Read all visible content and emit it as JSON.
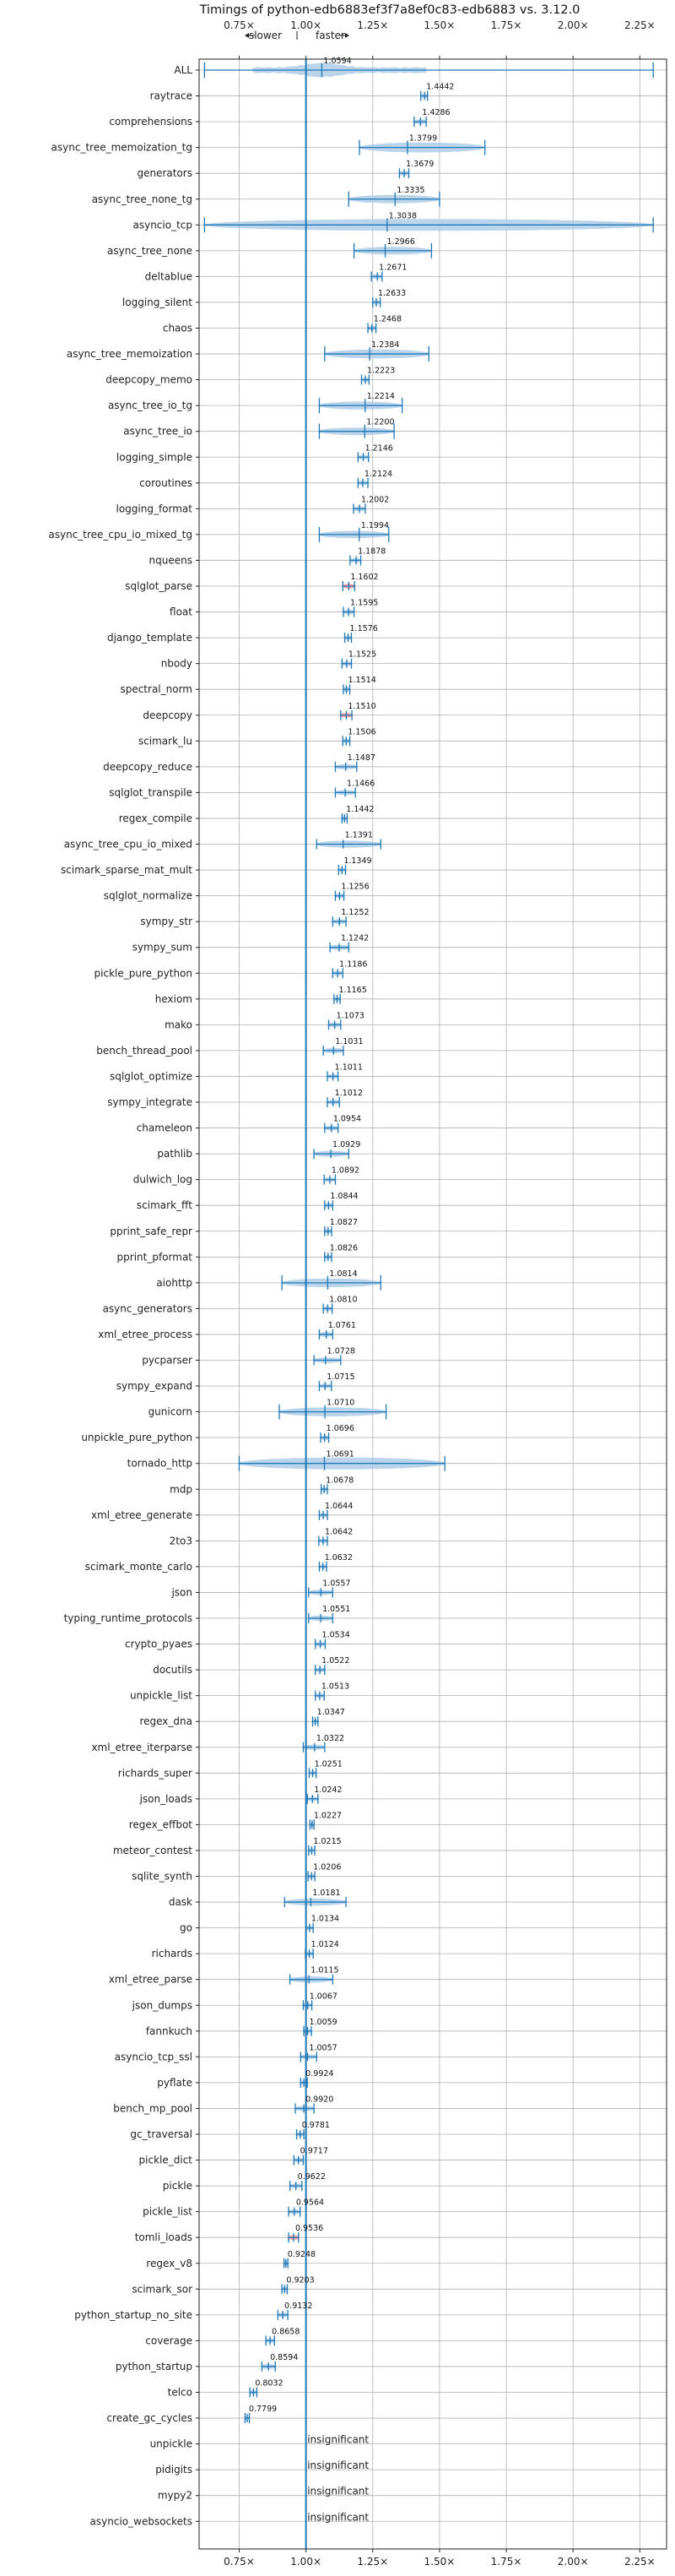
{
  "chart_data": {
    "type": "violin",
    "title": "Timings of python-edb6883ef3f7a8ef0c83-edb6883 vs. 3.12.0",
    "direction_labels": {
      "slower": "slower",
      "faster": "faster"
    },
    "xlim": [
      0.6,
      2.35
    ],
    "x_ticks": [
      {
        "value": 0.75,
        "label": "0.75×"
      },
      {
        "value": 1.0,
        "label": "1.00×"
      },
      {
        "value": 1.25,
        "label": "1.25×"
      },
      {
        "value": 1.5,
        "label": "1.50×"
      },
      {
        "value": 1.75,
        "label": "1.75×"
      },
      {
        "value": 2.0,
        "label": "2.00×"
      },
      {
        "value": 2.25,
        "label": "2.25×"
      }
    ],
    "reference_line": 1.0,
    "grid": true,
    "insignificant_label": "insignificant",
    "accent_color": "#1f77b4",
    "fill_color": "#aecde8",
    "highlight_color": "#ff9999",
    "benchmarks": [
      {
        "name": "ALL",
        "value": 1.0594,
        "label": "1.0594",
        "min": 0.62,
        "max": 2.3,
        "kind": "all"
      },
      {
        "name": "raytrace",
        "value": 1.4442,
        "label": "1.4442",
        "min": 1.43,
        "max": 1.455
      },
      {
        "name": "comprehensions",
        "value": 1.4286,
        "label": "1.4286",
        "min": 1.405,
        "max": 1.45
      },
      {
        "name": "async_tree_memoization_tg",
        "value": 1.3799,
        "label": "1.3799",
        "min": 1.2,
        "max": 1.67
      },
      {
        "name": "generators",
        "value": 1.3679,
        "label": "1.3679",
        "min": 1.35,
        "max": 1.385
      },
      {
        "name": "async_tree_none_tg",
        "value": 1.3335,
        "label": "1.3335",
        "min": 1.16,
        "max": 1.5
      },
      {
        "name": "asyncio_tcp",
        "value": 1.3038,
        "label": "1.3038",
        "min": 0.62,
        "max": 2.3
      },
      {
        "name": "async_tree_none",
        "value": 1.2966,
        "label": "1.2966",
        "min": 1.18,
        "max": 1.47
      },
      {
        "name": "deltablue",
        "value": 1.2671,
        "label": "1.2671",
        "min": 1.245,
        "max": 1.285
      },
      {
        "name": "logging_silent",
        "value": 1.2633,
        "label": "1.2633",
        "min": 1.25,
        "max": 1.278
      },
      {
        "name": "chaos",
        "value": 1.2468,
        "label": "1.2468",
        "min": 1.232,
        "max": 1.262
      },
      {
        "name": "async_tree_memoization",
        "value": 1.2384,
        "label": "1.2384",
        "min": 1.07,
        "max": 1.46
      },
      {
        "name": "deepcopy_memo",
        "value": 1.2223,
        "label": "1.2223",
        "min": 1.208,
        "max": 1.236
      },
      {
        "name": "async_tree_io_tg",
        "value": 1.2214,
        "label": "1.2214",
        "min": 1.05,
        "max": 1.36
      },
      {
        "name": "async_tree_io",
        "value": 1.22,
        "label": "1.2200",
        "min": 1.05,
        "max": 1.33
      },
      {
        "name": "logging_simple",
        "value": 1.2146,
        "label": "1.2146",
        "min": 1.195,
        "max": 1.234
      },
      {
        "name": "coroutines",
        "value": 1.2124,
        "label": "1.2124",
        "min": 1.195,
        "max": 1.232
      },
      {
        "name": "logging_format",
        "value": 1.2002,
        "label": "1.2002",
        "min": 1.178,
        "max": 1.222
      },
      {
        "name": "async_tree_cpu_io_mixed_tg",
        "value": 1.1994,
        "label": "1.1994",
        "min": 1.05,
        "max": 1.31
      },
      {
        "name": "nqueens",
        "value": 1.1878,
        "label": "1.1878",
        "min": 1.165,
        "max": 1.205
      },
      {
        "name": "sqlglot_parse",
        "value": 1.1602,
        "label": "1.1602",
        "min": 1.138,
        "max": 1.182,
        "highlight": true
      },
      {
        "name": "float",
        "value": 1.1595,
        "label": "1.1595",
        "min": 1.14,
        "max": 1.18
      },
      {
        "name": "django_template",
        "value": 1.1576,
        "label": "1.1576",
        "min": 1.145,
        "max": 1.17
      },
      {
        "name": "nbody",
        "value": 1.1525,
        "label": "1.1525",
        "min": 1.135,
        "max": 1.17
      },
      {
        "name": "spectral_norm",
        "value": 1.1514,
        "label": "1.1514",
        "min": 1.14,
        "max": 1.164
      },
      {
        "name": "deepcopy",
        "value": 1.151,
        "label": "1.1510",
        "min": 1.13,
        "max": 1.172,
        "highlight": true
      },
      {
        "name": "scimark_lu",
        "value": 1.1506,
        "label": "1.1506",
        "min": 1.138,
        "max": 1.164
      },
      {
        "name": "deepcopy_reduce",
        "value": 1.1487,
        "label": "1.1487",
        "min": 1.11,
        "max": 1.19
      },
      {
        "name": "sqlglot_transpile",
        "value": 1.1466,
        "label": "1.1466",
        "min": 1.11,
        "max": 1.185
      },
      {
        "name": "regex_compile",
        "value": 1.1442,
        "label": "1.1442",
        "min": 1.135,
        "max": 1.154
      },
      {
        "name": "async_tree_cpu_io_mixed",
        "value": 1.1391,
        "label": "1.1391",
        "min": 1.04,
        "max": 1.28
      },
      {
        "name": "scimark_sparse_mat_mult",
        "value": 1.1349,
        "label": "1.1349",
        "min": 1.122,
        "max": 1.148
      },
      {
        "name": "sqlglot_normalize",
        "value": 1.1256,
        "label": "1.1256",
        "min": 1.11,
        "max": 1.142
      },
      {
        "name": "sympy_str",
        "value": 1.1252,
        "label": "1.1252",
        "min": 1.1,
        "max": 1.15
      },
      {
        "name": "sympy_sum",
        "value": 1.1242,
        "label": "1.1242",
        "min": 1.09,
        "max": 1.16
      },
      {
        "name": "pickle_pure_python",
        "value": 1.1186,
        "label": "1.1186",
        "min": 1.1,
        "max": 1.138
      },
      {
        "name": "hexiom",
        "value": 1.1165,
        "label": "1.1165",
        "min": 1.105,
        "max": 1.128
      },
      {
        "name": "mako",
        "value": 1.1073,
        "label": "1.1073",
        "min": 1.085,
        "max": 1.13
      },
      {
        "name": "bench_thread_pool",
        "value": 1.1031,
        "label": "1.1031",
        "min": 1.065,
        "max": 1.14
      },
      {
        "name": "sqlglot_optimize",
        "value": 1.1011,
        "label": "1.1011",
        "min": 1.08,
        "max": 1.12
      },
      {
        "name": "sympy_integrate",
        "value": 1.1012,
        "label": "1.1012",
        "min": 1.08,
        "max": 1.125
      },
      {
        "name": "chameleon",
        "value": 1.0954,
        "label": "1.0954",
        "min": 1.07,
        "max": 1.12
      },
      {
        "name": "pathlib",
        "value": 1.0929,
        "label": "1.0929",
        "min": 1.03,
        "max": 1.16
      },
      {
        "name": "dulwich_log",
        "value": 1.0892,
        "label": "1.0892",
        "min": 1.068,
        "max": 1.11
      },
      {
        "name": "scimark_fft",
        "value": 1.0844,
        "label": "1.0844",
        "min": 1.07,
        "max": 1.1
      },
      {
        "name": "pprint_safe_repr",
        "value": 1.0827,
        "label": "1.0827",
        "min": 1.07,
        "max": 1.096
      },
      {
        "name": "pprint_pformat",
        "value": 1.0826,
        "label": "1.0826",
        "min": 1.07,
        "max": 1.096
      },
      {
        "name": "aiohttp",
        "value": 1.0814,
        "label": "1.0814",
        "min": 0.91,
        "max": 1.28
      },
      {
        "name": "async_generators",
        "value": 1.081,
        "label": "1.0810",
        "min": 1.065,
        "max": 1.098
      },
      {
        "name": "xml_etree_process",
        "value": 1.0761,
        "label": "1.0761",
        "min": 1.05,
        "max": 1.1
      },
      {
        "name": "pycparser",
        "value": 1.0728,
        "label": "1.0728",
        "min": 1.03,
        "max": 1.13
      },
      {
        "name": "sympy_expand",
        "value": 1.0715,
        "label": "1.0715",
        "min": 1.05,
        "max": 1.095
      },
      {
        "name": "gunicorn",
        "value": 1.071,
        "label": "1.0710",
        "min": 0.9,
        "max": 1.3
      },
      {
        "name": "unpickle_pure_python",
        "value": 1.0696,
        "label": "1.0696",
        "min": 1.055,
        "max": 1.085
      },
      {
        "name": "tornado_http",
        "value": 1.0691,
        "label": "1.0691",
        "min": 0.75,
        "max": 1.52
      },
      {
        "name": "mdp",
        "value": 1.0678,
        "label": "1.0678",
        "min": 1.057,
        "max": 1.08
      },
      {
        "name": "xml_etree_generate",
        "value": 1.0644,
        "label": "1.0644",
        "min": 1.05,
        "max": 1.08
      },
      {
        "name": "2to3",
        "value": 1.0642,
        "label": "1.0642",
        "min": 1.048,
        "max": 1.08
      },
      {
        "name": "scimark_monte_carlo",
        "value": 1.0632,
        "label": "1.0632",
        "min": 1.05,
        "max": 1.077
      },
      {
        "name": "json",
        "value": 1.0557,
        "label": "1.0557",
        "min": 1.01,
        "max": 1.1
      },
      {
        "name": "typing_runtime_protocols",
        "value": 1.0551,
        "label": "1.0551",
        "min": 1.01,
        "max": 1.1
      },
      {
        "name": "crypto_pyaes",
        "value": 1.0534,
        "label": "1.0534",
        "min": 1.035,
        "max": 1.072
      },
      {
        "name": "docutils",
        "value": 1.0522,
        "label": "1.0522",
        "min": 1.035,
        "max": 1.07
      },
      {
        "name": "unpickle_list",
        "value": 1.0513,
        "label": "1.0513",
        "min": 1.035,
        "max": 1.068
      },
      {
        "name": "regex_dna",
        "value": 1.0347,
        "label": "1.0347",
        "min": 1.025,
        "max": 1.045
      },
      {
        "name": "xml_etree_iterparse",
        "value": 1.0322,
        "label": "1.0322",
        "min": 0.99,
        "max": 1.07
      },
      {
        "name": "richards_super",
        "value": 1.0251,
        "label": "1.0251",
        "min": 1.012,
        "max": 1.038
      },
      {
        "name": "json_loads",
        "value": 1.0242,
        "label": "1.0242",
        "min": 1.005,
        "max": 1.045
      },
      {
        "name": "regex_effbot",
        "value": 1.0227,
        "label": "1.0227",
        "min": 1.015,
        "max": 1.03
      },
      {
        "name": "meteor_contest",
        "value": 1.0215,
        "label": "1.0215",
        "min": 1.01,
        "max": 1.033
      },
      {
        "name": "sqlite_synth",
        "value": 1.0206,
        "label": "1.0206",
        "min": 1.008,
        "max": 1.033
      },
      {
        "name": "dask",
        "value": 1.0181,
        "label": "1.0181",
        "min": 0.92,
        "max": 1.15
      },
      {
        "name": "go",
        "value": 1.0134,
        "label": "1.0134",
        "min": 1.0,
        "max": 1.027
      },
      {
        "name": "richards",
        "value": 1.0124,
        "label": "1.0124",
        "min": 0.998,
        "max": 1.027
      },
      {
        "name": "xml_etree_parse",
        "value": 1.0115,
        "label": "1.0115",
        "min": 0.94,
        "max": 1.1
      },
      {
        "name": "json_dumps",
        "value": 1.0067,
        "label": "1.0067",
        "min": 0.99,
        "max": 1.022
      },
      {
        "name": "fannkuch",
        "value": 1.0059,
        "label": "1.0059",
        "min": 0.992,
        "max": 1.02
      },
      {
        "name": "asyncio_tcp_ssl",
        "value": 1.0057,
        "label": "1.0057",
        "min": 0.98,
        "max": 1.04
      },
      {
        "name": "pyflate",
        "value": 0.9924,
        "label": "0.9924",
        "min": 0.98,
        "max": 1.005
      },
      {
        "name": "bench_mp_pool",
        "value": 0.992,
        "label": "0.9920",
        "min": 0.96,
        "max": 1.03
      },
      {
        "name": "gc_traversal",
        "value": 0.9781,
        "label": "0.9781",
        "min": 0.965,
        "max": 0.992
      },
      {
        "name": "pickle_dict",
        "value": 0.9717,
        "label": "0.9717",
        "min": 0.955,
        "max": 0.99
      },
      {
        "name": "pickle",
        "value": 0.9622,
        "label": "0.9622",
        "min": 0.94,
        "max": 0.985
      },
      {
        "name": "pickle_list",
        "value": 0.9564,
        "label": "0.9564",
        "min": 0.935,
        "max": 0.978
      },
      {
        "name": "tomli_loads",
        "value": 0.9536,
        "label": "0.9536",
        "min": 0.935,
        "max": 0.972,
        "highlight": true
      },
      {
        "name": "regex_v8",
        "value": 0.9248,
        "label": "0.9248",
        "min": 0.918,
        "max": 0.932
      },
      {
        "name": "scimark_sor",
        "value": 0.9203,
        "label": "0.9203",
        "min": 0.91,
        "max": 0.93
      },
      {
        "name": "python_startup_no_site",
        "value": 0.9132,
        "label": "0.9132",
        "min": 0.895,
        "max": 0.932
      },
      {
        "name": "coverage",
        "value": 0.8658,
        "label": "0.8658",
        "min": 0.85,
        "max": 0.882
      },
      {
        "name": "python_startup",
        "value": 0.8594,
        "label": "0.8594",
        "min": 0.835,
        "max": 0.885
      },
      {
        "name": "telco",
        "value": 0.8032,
        "label": "0.8032",
        "min": 0.79,
        "max": 0.816
      },
      {
        "name": "create_gc_cycles",
        "value": 0.7799,
        "label": "0.7799",
        "min": 0.772,
        "max": 0.788
      },
      {
        "name": "unpickle",
        "insignificant": true
      },
      {
        "name": "pidigits",
        "insignificant": true
      },
      {
        "name": "mypy2",
        "insignificant": true
      },
      {
        "name": "asyncio_websockets",
        "insignificant": true
      }
    ]
  }
}
